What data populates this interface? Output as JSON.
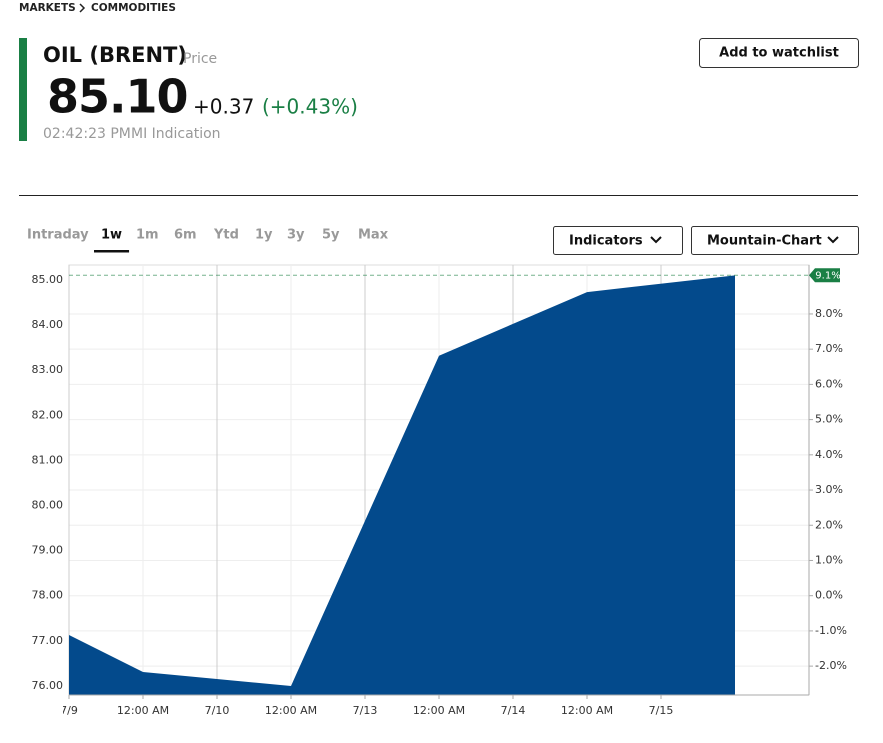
{
  "header": {
    "breadcrumb": [
      "MARKETS",
      "COMMODITIES"
    ],
    "name": "OIL (BRENT)",
    "price_label": "Price",
    "price": "85.10",
    "change": "+0.37",
    "change_pct": "(+0.43%)",
    "time": "02:42:23 PM",
    "source": "MI Indication",
    "watchlist_button": "Add to watchlist"
  },
  "tabs": [
    "Intraday",
    "1w",
    "1m",
    "6m",
    "Ytd",
    "1y",
    "3y",
    "5y",
    "Max"
  ],
  "dropdowns": [
    "Indicators",
    "Mountain-Chart"
  ],
  "chart_data": {
    "type": "area",
    "color": "#034a8c",
    "x": [
      0,
      1,
      3,
      5,
      7,
      9
    ],
    "series": [
      {
        "name": "OIL (BRENT)",
        "color": "#034a8c",
        "values": [
          77.13,
          76.31,
          76.0,
          83.32,
          84.73,
          85.1
        ]
      }
    ],
    "xlim": [
      0,
      10
    ],
    "xticks": [
      {
        "value": 0,
        "label": "7/9"
      },
      {
        "value": 1,
        "label": "12:00 AM"
      },
      {
        "value": 2,
        "label": "7/10"
      },
      {
        "value": 3,
        "label": "12:00 AM"
      },
      {
        "value": 4,
        "label": "7/13"
      },
      {
        "value": 5,
        "label": "12:00 AM"
      },
      {
        "value": 6,
        "label": "7/14"
      },
      {
        "value": 7,
        "label": "12:00 AM"
      },
      {
        "value": 8,
        "label": "7/15"
      }
    ],
    "ylim": [
      75.8,
      85.33
    ],
    "yticks": [
      {
        "value": 76,
        "label": "76.00"
      },
      {
        "value": 77,
        "label": "77.00"
      },
      {
        "value": 78,
        "label": "78.00"
      },
      {
        "value": 79,
        "label": "79.00"
      },
      {
        "value": 80,
        "label": "80.00"
      },
      {
        "value": 81,
        "label": "81.00"
      },
      {
        "value": 82,
        "label": "82.00"
      },
      {
        "value": 83,
        "label": "83.00"
      },
      {
        "value": 84,
        "label": "84.00"
      },
      {
        "value": 85,
        "label": "85.00"
      }
    ],
    "y2lim": [
      -2.82,
      9.39
    ],
    "y2ticks": [
      {
        "value": -2,
        "label": "-2.0%"
      },
      {
        "value": -1,
        "label": "-1.0%"
      },
      {
        "value": 0,
        "label": "0.0%"
      },
      {
        "value": 1,
        "label": "1.0%"
      },
      {
        "value": 2,
        "label": "2.0%"
      },
      {
        "value": 3,
        "label": "3.0%"
      },
      {
        "value": 4,
        "label": "4.0%"
      },
      {
        "value": 5,
        "label": "5.0%"
      },
      {
        "value": 6,
        "label": "6.0%"
      },
      {
        "value": 7,
        "label": "7.0%"
      },
      {
        "value": 8,
        "label": "8.0%"
      }
    ],
    "marker": {
      "value": 9.1,
      "label": "9.1%",
      "color": "#1a7f45"
    },
    "grid": true
  }
}
